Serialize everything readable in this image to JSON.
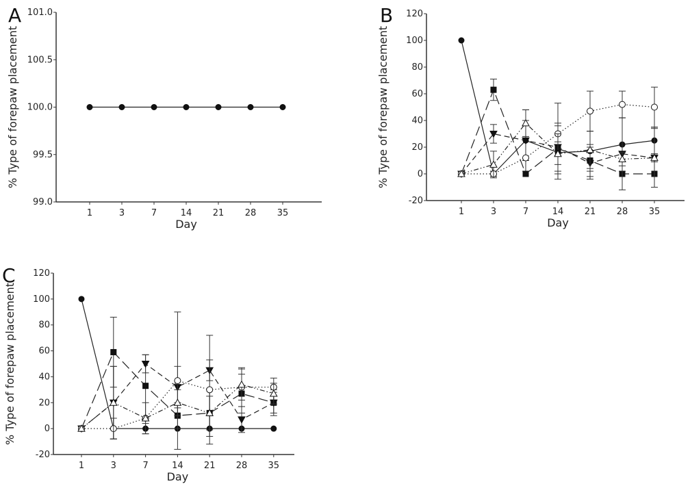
{
  "chart_data": [
    {
      "panel": "A",
      "type": "line",
      "xlabel": "Day",
      "ylabel": "% Type of forepaw placement",
      "categories": [
        "1",
        "3",
        "7",
        "14",
        "21",
        "28",
        "35"
      ],
      "ylim": [
        99.0,
        101.0
      ],
      "yticks": [
        "99.0",
        "99.5",
        "100.0",
        "100.5",
        "101.0"
      ],
      "series": [
        {
          "marker": "filled-circle",
          "dash": "solid",
          "values": [
            100,
            100,
            100,
            100,
            100,
            100,
            100
          ],
          "err": [
            0,
            0,
            0,
            0,
            0,
            0,
            0
          ]
        }
      ]
    },
    {
      "panel": "B",
      "type": "line",
      "xlabel": "Day",
      "ylabel": "% Type of forepaw placement",
      "categories": [
        "1",
        "3",
        "7",
        "14",
        "21",
        "28",
        "35"
      ],
      "ylim": [
        -20,
        120
      ],
      "yticks": [
        "-20",
        "0",
        "20",
        "40",
        "60",
        "80",
        "100",
        "120"
      ],
      "series": [
        {
          "marker": "filled-circle",
          "dash": "solid",
          "values": [
            100,
            0,
            25,
            16,
            17,
            22,
            25
          ],
          "err": [
            0,
            2,
            23,
            20,
            15,
            20,
            10
          ]
        },
        {
          "marker": "filled-square",
          "dash": "long-dash",
          "values": [
            0,
            63,
            0,
            19,
            10,
            0,
            0
          ],
          "err": [
            0,
            8,
            0,
            5,
            12,
            0,
            0
          ]
        },
        {
          "marker": "filled-down-triangle",
          "dash": "dash",
          "values": [
            0,
            30,
            25,
            20,
            8,
            15,
            12
          ],
          "err": [
            0,
            7,
            15,
            18,
            12,
            27,
            22
          ]
        },
        {
          "marker": "open-circle",
          "dash": "dotted",
          "values": [
            0,
            0,
            12,
            30,
            47,
            52,
            50
          ],
          "err": [
            0,
            2,
            0,
            23,
            15,
            10,
            15
          ]
        },
        {
          "marker": "open-triangle",
          "dash": "dash-dot-dot",
          "values": [
            0,
            7,
            38,
            15,
            18,
            11,
            12
          ],
          "err": [
            0,
            10,
            10,
            15,
            14,
            5,
            3
          ]
        }
      ]
    },
    {
      "panel": "C",
      "type": "line",
      "xlabel": "Day",
      "ylabel": "% Type of forepaw placement",
      "categories": [
        "1",
        "3",
        "7",
        "14",
        "21",
        "28",
        "35"
      ],
      "ylim": [
        -20,
        120
      ],
      "yticks": [
        "-20",
        "0",
        "20",
        "40",
        "60",
        "80",
        "100",
        "120"
      ],
      "series": [
        {
          "marker": "filled-circle",
          "dash": "solid",
          "values": [
            100,
            0,
            0,
            0,
            0,
            0,
            0
          ],
          "err": [
            0,
            0,
            4,
            0,
            0,
            0,
            0
          ]
        },
        {
          "marker": "filled-square",
          "dash": "long-dash",
          "values": [
            0,
            59,
            33,
            10,
            12,
            27,
            20
          ],
          "err": [
            0,
            27,
            24,
            10,
            18,
            15,
            8
          ]
        },
        {
          "marker": "filled-down-triangle",
          "dash": "dash",
          "values": [
            0,
            20,
            50,
            32,
            45,
            7,
            20
          ],
          "err": [
            0,
            28,
            7,
            16,
            8,
            10,
            10
          ]
        },
        {
          "marker": "open-circle",
          "dash": "dotted",
          "values": [
            0,
            0,
            8,
            37,
            30,
            32,
            32
          ],
          "err": [
            0,
            8,
            0,
            53,
            42,
            15,
            7
          ]
        },
        {
          "marker": "open-triangle",
          "dash": "dash-dot-dot",
          "values": [
            0,
            20,
            8,
            20,
            12,
            34,
            27
          ],
          "err": [
            0,
            28,
            12,
            10,
            13,
            12,
            8
          ]
        }
      ]
    }
  ]
}
